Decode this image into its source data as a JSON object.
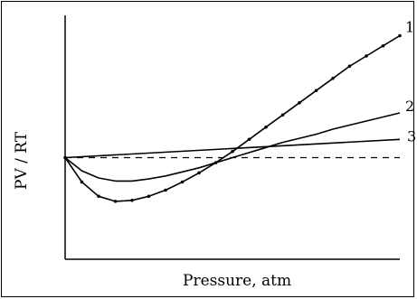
{
  "chart_data": {
    "type": "line",
    "title": "",
    "xlabel": "Pressure, atm",
    "ylabel": "PV / RT",
    "xlim": [
      0,
      10
    ],
    "ylim": [
      0,
      2.4
    ],
    "grid": false,
    "reference_line": {
      "y": 1.0,
      "style": "dashed"
    },
    "series": [
      {
        "name": "1",
        "x": [
          0,
          0.5,
          1.0,
          1.5,
          2.0,
          2.5,
          3.0,
          3.5,
          4.0,
          4.5,
          5.0,
          5.5,
          6.0,
          6.5,
          7.0,
          7.5,
          8.0,
          8.5,
          9.0,
          9.5,
          10.0
        ],
        "y": [
          1.0,
          0.76,
          0.62,
          0.57,
          0.58,
          0.62,
          0.68,
          0.76,
          0.85,
          0.95,
          1.06,
          1.18,
          1.3,
          1.42,
          1.54,
          1.66,
          1.78,
          1.9,
          2.0,
          2.1,
          2.2
        ]
      },
      {
        "name": "2",
        "x": [
          0,
          0.5,
          1.0,
          1.5,
          2.0,
          2.5,
          3.0,
          3.5,
          4.0,
          4.5,
          5.0,
          5.5,
          6.0,
          6.5,
          7.0,
          7.5,
          8.0,
          8.5,
          9.0,
          9.5,
          10.0
        ],
        "y": [
          1.0,
          0.87,
          0.8,
          0.77,
          0.77,
          0.79,
          0.82,
          0.86,
          0.9,
          0.95,
          1.0,
          1.05,
          1.1,
          1.15,
          1.19,
          1.23,
          1.28,
          1.32,
          1.36,
          1.4,
          1.44
        ]
      },
      {
        "name": "3",
        "x": [
          0,
          10
        ],
        "y": [
          1.0,
          1.18
        ]
      }
    ],
    "colors": {
      "line": "#000000",
      "background": "#ffffff"
    }
  }
}
